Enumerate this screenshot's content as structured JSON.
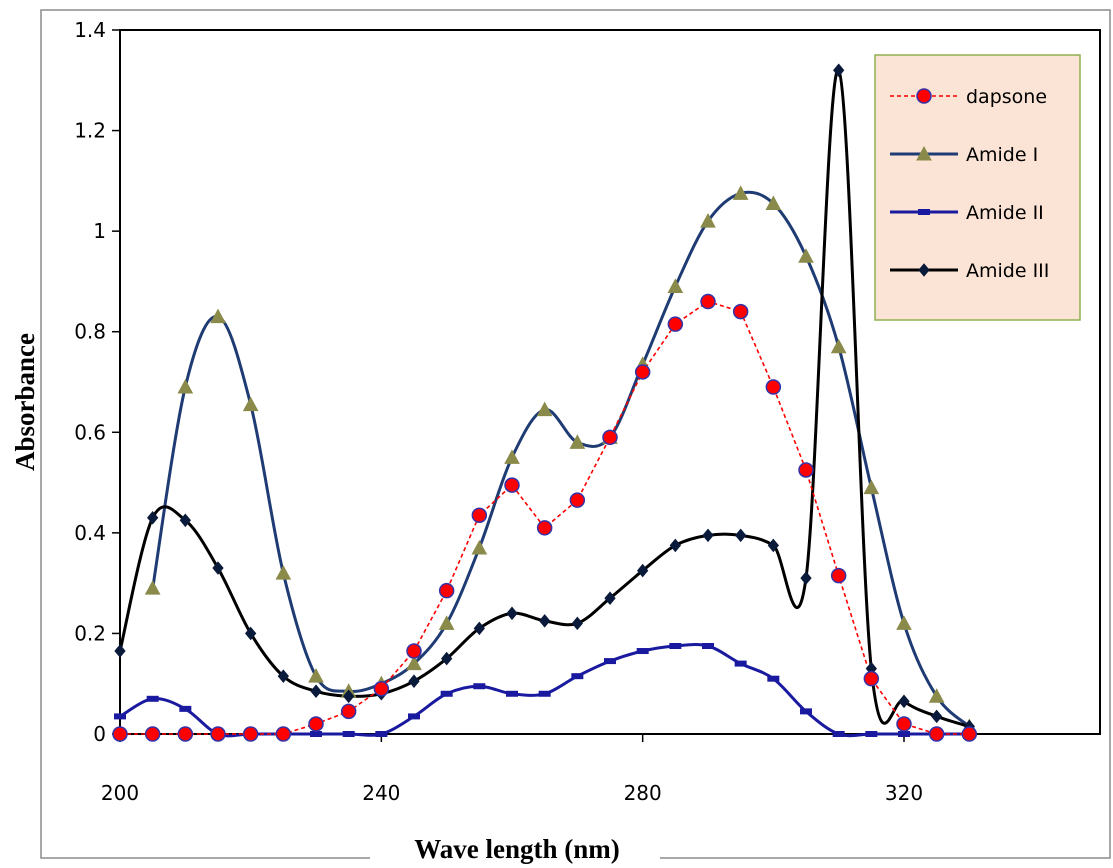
{
  "chart_data": {
    "type": "line",
    "title": "",
    "xlabel": "Wave length (nm)",
    "ylabel": "Absorbance",
    "xlim": [
      200,
      350
    ],
    "ylim": [
      0,
      1.4
    ],
    "x_ticks": [
      200,
      240,
      280,
      320
    ],
    "x_tick_labels": [
      "200",
      "240",
      "280",
      "320"
    ],
    "y_ticks": [
      0,
      0.2,
      0.4,
      0.6,
      0.8,
      1,
      1.2,
      1.4
    ],
    "y_tick_labels": [
      "0",
      "0.2",
      "0.4",
      "0.6",
      "0.8",
      "1",
      "1.2",
      "1.4"
    ],
    "grid": false,
    "legend_position": "top-right",
    "series": [
      {
        "name": "dapsone",
        "color": "#ff0000",
        "marker": "circle",
        "marker_fill": "#ff0000",
        "marker_stroke": "#3333aa",
        "line_style": "dotted",
        "smooth": false,
        "x": [
          200,
          205,
          210,
          215,
          220,
          225,
          230,
          235,
          240,
          245,
          250,
          255,
          260,
          265,
          270,
          275,
          280,
          285,
          290,
          295,
          300,
          305,
          310,
          315,
          320,
          325,
          330
        ],
        "y": [
          0,
          0,
          0,
          0,
          0,
          0,
          0.02,
          0.045,
          0.09,
          0.165,
          0.285,
          0.435,
          0.495,
          0.41,
          0.465,
          0.59,
          0.72,
          0.815,
          0.86,
          0.84,
          0.69,
          0.525,
          0.315,
          0.11,
          0.02,
          0,
          0
        ]
      },
      {
        "name": "Amide I",
        "color": "#1f3b73",
        "marker": "triangle",
        "marker_fill": "#8a8a4a",
        "marker_stroke": "#8a8a4a",
        "line_style": "solid",
        "smooth": true,
        "x": [
          205,
          210,
          215,
          220,
          225,
          230,
          235,
          240,
          245,
          250,
          255,
          260,
          265,
          270,
          275,
          280,
          285,
          290,
          295,
          300,
          305,
          310,
          315,
          320,
          325,
          330
        ],
        "y": [
          0.29,
          0.69,
          0.83,
          0.655,
          0.32,
          0.115,
          0.085,
          0.1,
          0.14,
          0.22,
          0.37,
          0.55,
          0.645,
          0.58,
          0.59,
          0.735,
          0.89,
          1.02,
          1.075,
          1.055,
          0.95,
          0.77,
          0.49,
          0.22,
          0.075,
          0.015
        ]
      },
      {
        "name": "Amide II",
        "color": "#1a1aa0",
        "marker": "dash",
        "marker_fill": "#1a1aa0",
        "marker_stroke": "#1a1aa0",
        "line_style": "solid",
        "smooth": true,
        "x": [
          200,
          205,
          210,
          215,
          220,
          225,
          230,
          235,
          240,
          245,
          250,
          255,
          260,
          265,
          270,
          275,
          280,
          285,
          290,
          295,
          300,
          305,
          310,
          315,
          320,
          325,
          330
        ],
        "y": [
          0.035,
          0.07,
          0.05,
          0,
          0,
          0,
          0,
          0,
          0,
          0.035,
          0.08,
          0.095,
          0.08,
          0.08,
          0.115,
          0.145,
          0.165,
          0.175,
          0.175,
          0.14,
          0.11,
          0.045,
          0,
          0,
          0,
          0,
          0
        ]
      },
      {
        "name": "Amide III",
        "color": "#000000",
        "marker": "diamond",
        "marker_fill": "#0a1a3a",
        "marker_stroke": "#0a1a3a",
        "line_style": "solid",
        "smooth": true,
        "x": [
          200,
          205,
          210,
          215,
          220,
          225,
          230,
          235,
          240,
          245,
          250,
          255,
          260,
          265,
          270,
          275,
          280,
          285,
          290,
          295,
          300,
          305,
          310,
          315,
          320,
          325,
          330
        ],
        "y": [
          0.165,
          0.43,
          0.425,
          0.33,
          0.2,
          0.115,
          0.085,
          0.075,
          0.08,
          0.105,
          0.15,
          0.21,
          0.24,
          0.225,
          0.22,
          0.27,
          0.325,
          0.375,
          0.395,
          0.395,
          0.375,
          0.31,
          1.32,
          0.13,
          0.065,
          0.035,
          0.015
        ]
      }
    ]
  }
}
